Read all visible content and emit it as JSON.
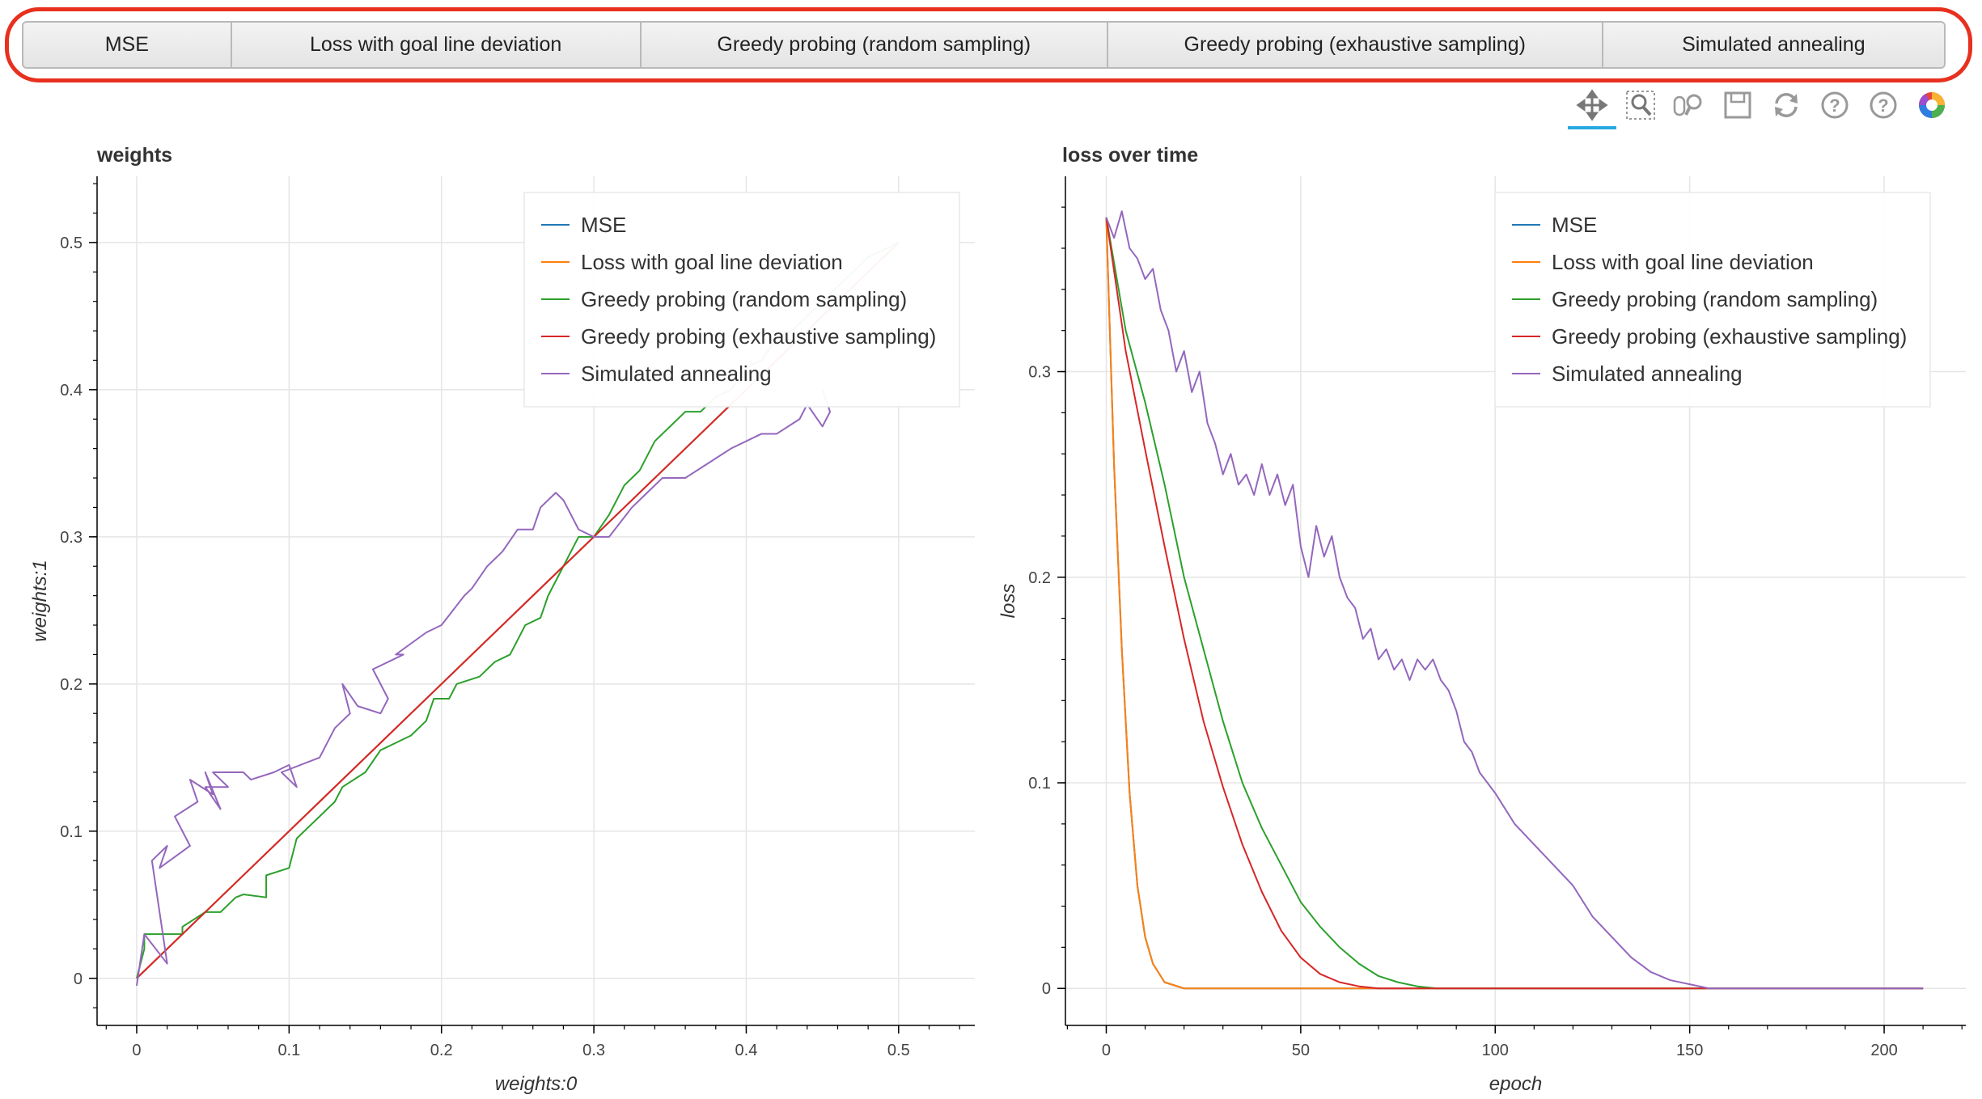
{
  "tabs": [
    {
      "label": "MSE"
    },
    {
      "label": "Loss with goal line deviation"
    },
    {
      "label": "Greedy probing (random sampling)"
    },
    {
      "label": "Greedy probing (exhaustive sampling)"
    },
    {
      "label": "Simulated annealing"
    }
  ],
  "toolbar": [
    {
      "name": "pan-tool-icon"
    },
    {
      "name": "box-zoom-tool-icon"
    },
    {
      "name": "wheel-zoom-tool-icon"
    },
    {
      "name": "save-tool-icon"
    },
    {
      "name": "reset-tool-icon"
    },
    {
      "name": "help-icon"
    },
    {
      "name": "help-icon-2"
    },
    {
      "name": "bokeh-logo-icon"
    }
  ],
  "colors": {
    "MSE": "#1f77b4",
    "Loss with goal line deviation": "#ff7f0e",
    "Greedy probing (random sampling)": "#2ca02c",
    "Greedy probing (exhaustive sampling)": "#d62728",
    "Simulated annealing": "#9467bd"
  },
  "chart_data": [
    {
      "type": "line",
      "title": "weights",
      "xlabel": "weights:0",
      "ylabel": "weights:1",
      "xlim": [
        -0.026,
        0.55
      ],
      "ylim": [
        -0.032,
        0.545
      ],
      "xticks": [
        0,
        0.1,
        0.2,
        0.3,
        0.4,
        0.5
      ],
      "yticks": [
        0,
        0.1,
        0.2,
        0.3,
        0.4,
        0.5
      ],
      "grid": true,
      "legend": "top-right",
      "series": [
        {
          "name": "MSE",
          "x": [
            0,
            0.5
          ],
          "y": [
            0,
            0.5
          ]
        },
        {
          "name": "Loss with goal line deviation",
          "x": [
            0,
            0.5
          ],
          "y": [
            0,
            0.5
          ]
        },
        {
          "name": "Greedy probing (random sampling)",
          "x": [
            0,
            0.005,
            0.005,
            0.03,
            0.03,
            0.045,
            0.055,
            0.065,
            0.07,
            0.085,
            0.085,
            0.1,
            0.105,
            0.12,
            0.13,
            0.135,
            0.15,
            0.16,
            0.17,
            0.18,
            0.19,
            0.195,
            0.205,
            0.21,
            0.225,
            0.235,
            0.245,
            0.255,
            0.265,
            0.27,
            0.28,
            0.29,
            0.3,
            0.31,
            0.32,
            0.33,
            0.34,
            0.35,
            0.36,
            0.37,
            0.38,
            0.39,
            0.4,
            0.41,
            0.42,
            0.43,
            0.44,
            0.45,
            0.46,
            0.47,
            0.48,
            0.49,
            0.5
          ],
          "y": [
            0,
            0.02,
            0.03,
            0.03,
            0.035,
            0.045,
            0.045,
            0.055,
            0.057,
            0.055,
            0.07,
            0.075,
            0.095,
            0.11,
            0.12,
            0.13,
            0.14,
            0.155,
            0.16,
            0.165,
            0.175,
            0.19,
            0.19,
            0.2,
            0.205,
            0.215,
            0.22,
            0.24,
            0.245,
            0.26,
            0.28,
            0.3,
            0.3,
            0.315,
            0.335,
            0.345,
            0.365,
            0.375,
            0.385,
            0.385,
            0.395,
            0.4,
            0.415,
            0.42,
            0.435,
            0.44,
            0.45,
            0.46,
            0.47,
            0.48,
            0.49,
            0.495,
            0.5
          ]
        },
        {
          "name": "Greedy probing (exhaustive sampling)",
          "x": [
            0,
            0.5
          ],
          "y": [
            0,
            0.5
          ]
        },
        {
          "name": "Simulated annealing",
          "x": [
            0,
            0.005,
            0.02,
            0.01,
            0.02,
            0.015,
            0.035,
            0.025,
            0.04,
            0.035,
            0.05,
            0.045,
            0.055,
            0.045,
            0.06,
            0.05,
            0.07,
            0.075,
            0.09,
            0.1,
            0.105,
            0.095,
            0.12,
            0.13,
            0.14,
            0.135,
            0.145,
            0.16,
            0.165,
            0.155,
            0.175,
            0.17,
            0.19,
            0.2,
            0.215,
            0.22,
            0.23,
            0.24,
            0.25,
            0.26,
            0.265,
            0.275,
            0.28,
            0.29,
            0.3,
            0.31,
            0.325,
            0.335,
            0.345,
            0.36,
            0.375,
            0.39,
            0.41,
            0.42,
            0.435,
            0.44,
            0.45,
            0.455,
            0.45
          ],
          "y": [
            -0.005,
            0.03,
            0.01,
            0.08,
            0.09,
            0.075,
            0.09,
            0.11,
            0.12,
            0.135,
            0.125,
            0.14,
            0.115,
            0.13,
            0.13,
            0.14,
            0.14,
            0.135,
            0.14,
            0.145,
            0.13,
            0.14,
            0.15,
            0.17,
            0.18,
            0.2,
            0.185,
            0.18,
            0.19,
            0.21,
            0.22,
            0.22,
            0.235,
            0.24,
            0.26,
            0.265,
            0.28,
            0.29,
            0.305,
            0.305,
            0.32,
            0.33,
            0.325,
            0.305,
            0.3,
            0.3,
            0.32,
            0.33,
            0.34,
            0.34,
            0.35,
            0.36,
            0.37,
            0.37,
            0.38,
            0.39,
            0.375,
            0.385,
            0.4
          ]
        }
      ]
    },
    {
      "type": "line",
      "title": "loss over time",
      "xlabel": "epoch",
      "ylabel": "loss",
      "xlim": [
        -10.5,
        221
      ],
      "ylim": [
        -0.018,
        0.395
      ],
      "xticks": [
        0,
        50,
        100,
        150,
        200
      ],
      "yticks": [
        0,
        0.1,
        0.2,
        0.3
      ],
      "grid": true,
      "legend": "top-right",
      "series": [
        {
          "name": "MSE",
          "x": [
            0,
            2,
            4,
            6,
            8,
            10,
            12,
            15,
            20,
            30,
            210
          ],
          "y": [
            0.375,
            0.255,
            0.165,
            0.095,
            0.05,
            0.025,
            0.012,
            0.003,
            0.0,
            0.0,
            0.0
          ]
        },
        {
          "name": "Loss with goal line deviation",
          "x": [
            0,
            2,
            4,
            6,
            8,
            10,
            12,
            15,
            20,
            30,
            210
          ],
          "y": [
            0.375,
            0.255,
            0.165,
            0.095,
            0.05,
            0.025,
            0.012,
            0.003,
            0.0,
            0.0,
            0.0
          ]
        },
        {
          "name": "Greedy probing (random sampling)",
          "x": [
            0,
            5,
            10,
            15,
            20,
            25,
            30,
            35,
            40,
            45,
            50,
            55,
            60,
            65,
            70,
            75,
            80,
            85,
            210
          ],
          "y": [
            0.375,
            0.32,
            0.285,
            0.245,
            0.2,
            0.165,
            0.13,
            0.1,
            0.078,
            0.06,
            0.042,
            0.03,
            0.02,
            0.012,
            0.006,
            0.003,
            0.001,
            0.0,
            0.0
          ]
        },
        {
          "name": "Greedy probing (exhaustive sampling)",
          "x": [
            0,
            5,
            10,
            15,
            20,
            25,
            30,
            35,
            40,
            45,
            50,
            55,
            60,
            65,
            70,
            75,
            210
          ],
          "y": [
            0.375,
            0.31,
            0.262,
            0.215,
            0.17,
            0.13,
            0.098,
            0.07,
            0.047,
            0.028,
            0.015,
            0.007,
            0.003,
            0.001,
            0.0,
            0.0,
            0.0
          ]
        },
        {
          "name": "Simulated annealing",
          "x": [
            0,
            2,
            4,
            6,
            8,
            10,
            12,
            14,
            16,
            18,
            20,
            22,
            24,
            26,
            28,
            30,
            32,
            34,
            36,
            38,
            40,
            42,
            44,
            46,
            48,
            50,
            52,
            54,
            56,
            58,
            60,
            62,
            64,
            66,
            68,
            70,
            72,
            74,
            76,
            78,
            80,
            82,
            84,
            86,
            88,
            90,
            92,
            94,
            96,
            98,
            100,
            105,
            110,
            115,
            120,
            125,
            130,
            135,
            140,
            145,
            150,
            155,
            160,
            210
          ],
          "y": [
            0.375,
            0.365,
            0.378,
            0.36,
            0.355,
            0.345,
            0.35,
            0.33,
            0.32,
            0.3,
            0.31,
            0.29,
            0.3,
            0.275,
            0.265,
            0.25,
            0.26,
            0.245,
            0.25,
            0.24,
            0.255,
            0.24,
            0.25,
            0.235,
            0.245,
            0.215,
            0.2,
            0.225,
            0.21,
            0.22,
            0.2,
            0.19,
            0.185,
            0.17,
            0.175,
            0.16,
            0.165,
            0.155,
            0.16,
            0.15,
            0.16,
            0.155,
            0.16,
            0.15,
            0.145,
            0.135,
            0.12,
            0.115,
            0.105,
            0.1,
            0.095,
            0.08,
            0.07,
            0.06,
            0.05,
            0.035,
            0.025,
            0.015,
            0.008,
            0.004,
            0.002,
            0.0,
            0.0,
            0.0
          ]
        }
      ]
    }
  ]
}
